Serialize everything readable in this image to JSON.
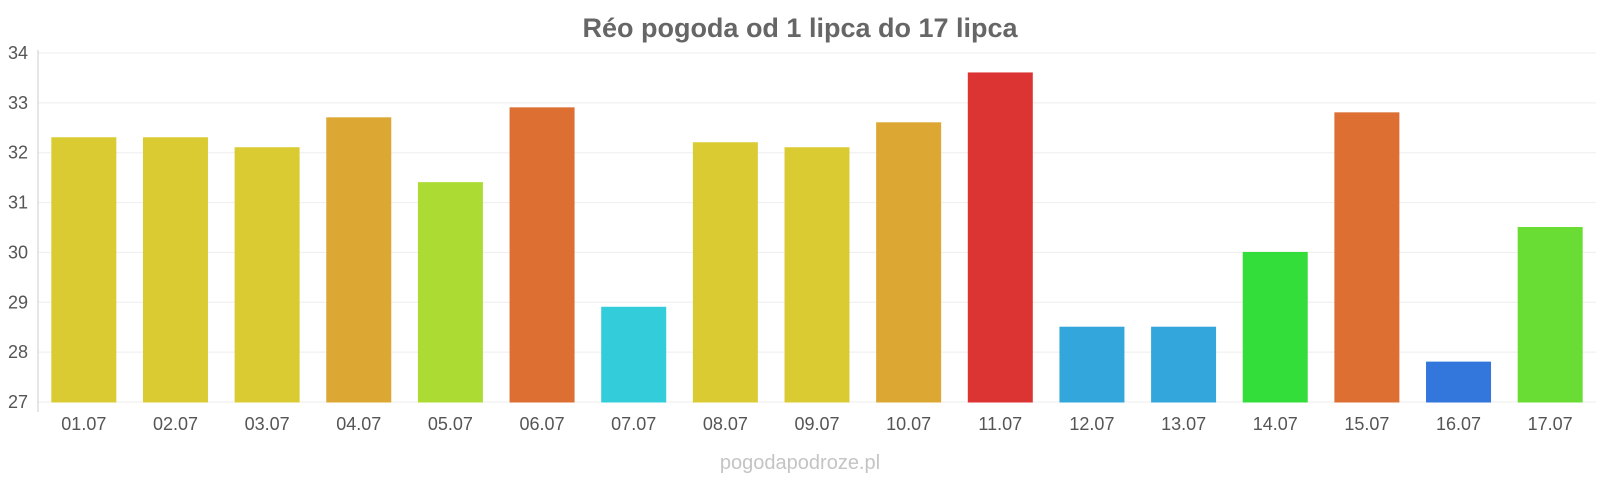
{
  "chart_data": {
    "type": "bar",
    "title": "Réo pogoda od 1 lipca do 17 lipca",
    "xlabel": "",
    "ylabel": "",
    "ylim": [
      27,
      34
    ],
    "yticks": [
      "27",
      "28",
      "29",
      "30",
      "31",
      "32",
      "33",
      "34"
    ],
    "grid": true,
    "categories": [
      "01.07",
      "02.07",
      "03.07",
      "04.07",
      "05.07",
      "06.07",
      "07.07",
      "08.07",
      "09.07",
      "10.07",
      "11.07",
      "12.07",
      "13.07",
      "14.07",
      "15.07",
      "16.07",
      "17.07"
    ],
    "values": [
      32.3,
      32.3,
      32.1,
      32.7,
      31.4,
      32.9,
      28.9,
      32.2,
      32.1,
      32.6,
      33.6,
      28.5,
      28.5,
      30.0,
      32.8,
      27.8,
      30.5
    ],
    "colors": [
      "#dbcb33",
      "#dbcb33",
      "#dbcb33",
      "#dca833",
      "#acdc33",
      "#dd6f33",
      "#33ccdb",
      "#dbcb33",
      "#dbcb33",
      "#dca833",
      "#dc3333",
      "#33a6db",
      "#33a6db",
      "#33dd3a",
      "#dd6f33",
      "#3376dc",
      "#69dd33"
    ]
  },
  "watermark": "pogodapodroze.pl"
}
